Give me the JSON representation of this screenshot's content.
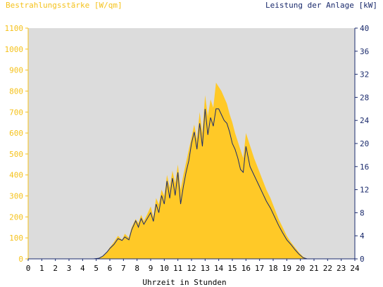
{
  "chart_data": {
    "type": "area",
    "title": "",
    "xlabel": "Uhrzeit in Stunden",
    "ylabel_left": "Bestrahlungsstärke [W/qm]",
    "ylabel_right": "Leistung der Anlage [kW]",
    "xlim": [
      0,
      24
    ],
    "ylim_left": [
      0,
      1100
    ],
    "ylim_right": [
      0,
      40
    ],
    "x_ticks": [
      "0",
      "1",
      "2",
      "3",
      "4",
      "5",
      "6",
      "7",
      "8",
      "9",
      "10",
      "11",
      "12",
      "13",
      "14",
      "15",
      "16",
      "17",
      "18",
      "19",
      "20",
      "21",
      "22",
      "23",
      "24"
    ],
    "y_ticks_left": [
      "0",
      "100",
      "200",
      "300",
      "400",
      "500",
      "600",
      "700",
      "800",
      "900",
      "1000",
      "1100"
    ],
    "y_ticks_right": [
      "0",
      "4",
      "8",
      "12",
      "16",
      "20",
      "24",
      "28",
      "32",
      "36",
      "40"
    ],
    "grid": false,
    "colors": {
      "irradiance": "#ffc927",
      "power": "#1a2a6c",
      "plot_background": "#dcdcdc",
      "left_axis": "#f5c21b",
      "right_axis": "#1a2a6c"
    },
    "series": [
      {
        "axis": "left",
        "kind": "area",
        "x": [
          0,
          4.8,
          5.2,
          5.5,
          5.8,
          6,
          6.3,
          6.6,
          6.9,
          7.1,
          7.4,
          7.6,
          7.9,
          8.1,
          8.3,
          8.5,
          8.8,
          9,
          9.2,
          9.4,
          9.6,
          9.8,
          10,
          10.2,
          10.4,
          10.6,
          10.8,
          11,
          11.2,
          11.4,
          11.6,
          11.8,
          12,
          12.2,
          12.4,
          12.6,
          12.8,
          13,
          13.2,
          13.4,
          13.6,
          13.8,
          14,
          14.2,
          14.4,
          14.6,
          14.8,
          15,
          15.2,
          15.4,
          15.6,
          15.8,
          16,
          16.3,
          16.6,
          16.9,
          17.2,
          17.5,
          17.8,
          18.1,
          18.4,
          18.7,
          19,
          19.3,
          19.6,
          19.9,
          20.2,
          20.5,
          21,
          24
        ],
        "y": [
          0,
          0,
          5,
          15,
          35,
          55,
          80,
          110,
          90,
          120,
          100,
          150,
          190,
          170,
          210,
          180,
          220,
          250,
          200,
          290,
          260,
          330,
          300,
          400,
          340,
          420,
          360,
          450,
          330,
          400,
          460,
          520,
          580,
          640,
          570,
          700,
          600,
          780,
          680,
          760,
          720,
          840,
          820,
          800,
          770,
          740,
          690,
          650,
          600,
          560,
          520,
          480,
          600,
          540,
          480,
          430,
          380,
          330,
          290,
          240,
          190,
          150,
          110,
          80,
          55,
          30,
          10,
          0,
          0,
          0
        ]
      },
      {
        "axis": "right",
        "kind": "line",
        "x": [
          0,
          4.8,
          5.2,
          5.5,
          5.8,
          6,
          6.3,
          6.6,
          6.9,
          7.1,
          7.4,
          7.6,
          7.9,
          8.1,
          8.3,
          8.5,
          8.8,
          9,
          9.2,
          9.4,
          9.6,
          9.8,
          10,
          10.2,
          10.4,
          10.6,
          10.8,
          11,
          11.2,
          11.4,
          11.6,
          11.8,
          12,
          12.2,
          12.4,
          12.6,
          12.8,
          13,
          13.2,
          13.4,
          13.6,
          13.8,
          14,
          14.2,
          14.4,
          14.6,
          14.8,
          15,
          15.2,
          15.4,
          15.6,
          15.8,
          16,
          16.3,
          16.6,
          16.9,
          17.2,
          17.5,
          17.8,
          18.1,
          18.4,
          18.7,
          19,
          19.3,
          19.6,
          19.9,
          20.2,
          20.5,
          21,
          24
        ],
        "y": [
          0,
          0,
          0.1,
          0.5,
          1.2,
          1.8,
          2.5,
          3.5,
          3.2,
          3.8,
          3.3,
          5,
          6.6,
          5.5,
          7,
          6,
          7.2,
          8,
          6.5,
          9.5,
          8,
          11,
          9.5,
          13.5,
          10.5,
          14,
          11,
          15,
          9.5,
          12.5,
          15,
          17,
          20,
          22,
          19,
          23.5,
          19.5,
          26,
          21.5,
          24.5,
          23,
          26,
          26,
          25,
          24,
          23.5,
          22,
          20,
          19,
          17.5,
          15.5,
          15,
          19.5,
          16,
          14.5,
          13,
          11.5,
          10,
          8.8,
          7.3,
          5.8,
          4.5,
          3.3,
          2.5,
          1.6,
          0.8,
          0.2,
          0,
          0,
          0
        ]
      }
    ]
  }
}
